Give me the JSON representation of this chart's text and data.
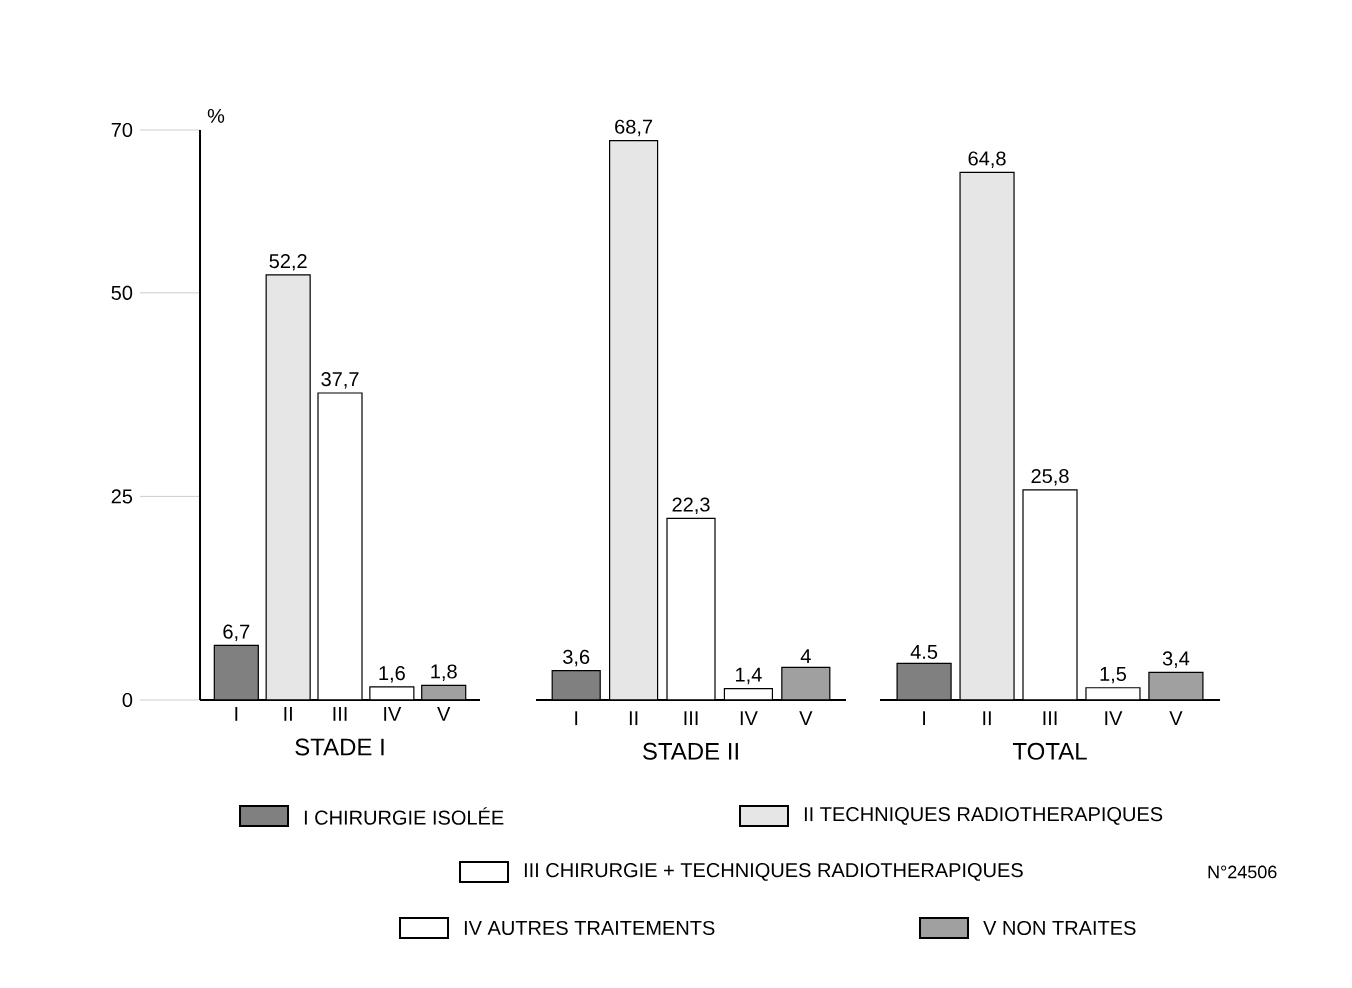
{
  "chart_data": [
    {
      "type": "bar",
      "categories": [
        "I",
        "II",
        "III",
        "IV",
        "V"
      ],
      "values": [
        6.7,
        52.2,
        37.7,
        1.6,
        1.8
      ],
      "value_labels": [
        "6,7",
        "52,2",
        "37,7",
        "1,6",
        "1,8"
      ],
      "colors": [
        "#808080",
        "#e6e6e6",
        "#ffffff",
        "#ffffff",
        "#a0a0a0"
      ],
      "xlabel": "STADE I",
      "ylabel": "%",
      "ylim": [
        0,
        70
      ],
      "yticks": [
        0,
        25,
        50,
        70
      ]
    },
    {
      "type": "bar",
      "categories": [
        "I",
        "II",
        "III",
        "IV",
        "V"
      ],
      "values": [
        3.6,
        68.7,
        22.3,
        1.4,
        4
      ],
      "value_labels": [
        "3,6",
        "68,7",
        "22,3",
        "1,4",
        "4"
      ],
      "colors": [
        "#808080",
        "#e6e6e6",
        "#ffffff",
        "#ffffff",
        "#a0a0a0"
      ],
      "xlabel": "STADE II",
      "ylim": [
        0,
        70
      ],
      "tick_labels": "x"
    },
    {
      "type": "bar",
      "categories": [
        "I",
        "II",
        "III",
        "IV",
        "V"
      ],
      "values": [
        4.5,
        64.8,
        25.8,
        1.5,
        3.4
      ],
      "value_labels": [
        "4.5",
        "64,8",
        "25,8",
        "1,5",
        "3,4"
      ],
      "colors": [
        "#808080",
        "#e6e6e6",
        "#ffffff",
        "#ffffff",
        "#a0a0a0"
      ],
      "xlabel": "TOTAL",
      "ylim": [
        0,
        70
      ],
      "tick_labels": "x"
    },
    {
      "type": "other",
      "annotations": [
        "I CHIRURGIE ISOLÉE",
        "II TECHNIQUES RADIOTHERAPIQUES",
        "III CHIRURGIE + TECHNIQUES RADIOTHERAPIQUES",
        "IV AUTRES TRAITEMENTS",
        "V NON TRAITES",
        "N°24506"
      ]
    }
  ]
}
